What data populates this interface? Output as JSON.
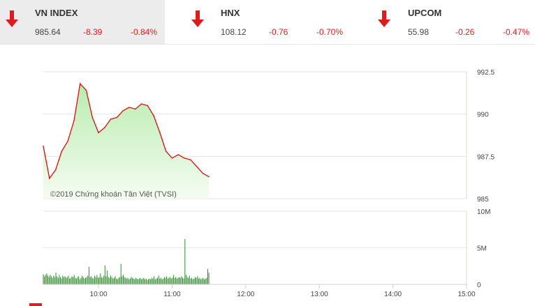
{
  "indices": [
    {
      "name": "VN INDEX",
      "value": "985.64",
      "change": "-8.39",
      "percent": "-0.84%",
      "direction": "down",
      "active": true
    },
    {
      "name": "HNX",
      "value": "108.12",
      "change": "-0.76",
      "percent": "-0.70%",
      "direction": "down",
      "active": false
    },
    {
      "name": "UPCOM",
      "value": "55.98",
      "change": "-0.26",
      "percent": "-0.47%",
      "direction": "down",
      "active": false
    }
  ],
  "colors": {
    "line": "#d41e1e",
    "area_top": "#b9ecae",
    "area_bottom": "#f4fcf2",
    "volume": "#2e8b2e",
    "down": "#e01b1b",
    "grid": "#e3e3e3",
    "axis": "#cfe3cf"
  },
  "chart_data": [
    {
      "type": "area",
      "watermark": "©2019 Chứng khoán Tân Việt (TVSI)",
      "x_label": "time",
      "xlim": [
        "09:15",
        "15:00"
      ],
      "ylim": [
        985,
        992.5
      ],
      "yticks": [
        "992.5",
        "990",
        "987.5",
        "985"
      ],
      "x": [
        "09:15",
        "09:20",
        "09:25",
        "09:30",
        "09:35",
        "09:40",
        "09:45",
        "09:50",
        "09:55",
        "10:00",
        "10:05",
        "10:10",
        "10:15",
        "10:20",
        "10:25",
        "10:30",
        "10:35",
        "10:40",
        "10:45",
        "10:50",
        "10:55",
        "11:00",
        "11:05",
        "11:10",
        "11:15",
        "11:20",
        "11:25",
        "11:30"
      ],
      "values": [
        988.1,
        986.2,
        986.7,
        987.8,
        988.4,
        989.6,
        991.8,
        991.4,
        989.8,
        988.9,
        989.2,
        989.7,
        989.8,
        990.2,
        990.4,
        990.3,
        990.6,
        990.5,
        989.9,
        988.9,
        987.8,
        987.4,
        987.6,
        987.4,
        987.3,
        986.9,
        986.5,
        986.3
      ]
    },
    {
      "type": "bar",
      "ylim": [
        0,
        10
      ],
      "yticks": [
        "10M",
        "5M",
        "0"
      ],
      "xticks": [
        "10:00",
        "11:00",
        "12:00",
        "13:00",
        "14:00",
        "15:00"
      ],
      "volume_unit": "millions",
      "values": [
        1.4,
        1.1,
        1.3,
        1.5,
        1.2,
        1.0,
        1.3,
        1.1,
        0.9,
        1.2,
        1.0,
        1.6,
        1.1,
        0.9,
        1.3,
        1.0,
        0.8,
        1.2,
        1.0,
        1.1,
        0.9,
        1.0,
        1.2,
        0.8,
        0.9,
        1.1,
        1.0,
        1.3,
        0.9,
        0.8,
        1.0,
        1.1,
        0.7,
        0.9,
        1.2,
        1.0,
        0.8,
        0.9,
        1.0,
        1.2,
        2.4,
        1.0,
        1.1,
        0.9,
        0.8,
        1.2,
        1.0,
        1.3,
        0.9,
        1.0,
        1.5,
        1.0,
        0.9,
        1.2,
        2.6,
        1.1,
        1.9,
        1.0,
        0.9,
        1.2,
        1.0,
        0.8,
        0.9,
        1.1,
        0.8,
        0.7,
        0.9,
        1.0,
        2.8,
        1.1,
        1.3,
        1.0,
        0.9,
        0.8,
        0.9,
        0.7,
        0.8,
        1.0,
        0.9,
        0.8,
        0.7,
        0.9,
        0.8,
        0.7,
        0.8,
        0.9,
        0.7,
        0.8,
        0.9,
        0.7,
        0.8,
        0.6,
        0.7,
        0.8,
        0.7,
        0.9,
        0.8,
        1.1,
        0.7,
        0.8,
        0.9,
        1.2,
        0.8,
        0.9,
        0.7,
        0.8,
        1.0,
        0.9,
        1.1,
        0.8,
        0.9,
        1.0,
        0.8,
        0.9,
        1.3,
        0.9,
        1.0,
        0.8,
        0.9,
        1.0,
        0.9,
        1.1,
        0.9,
        0.8,
        6.2,
        1.3,
        1.0,
        0.9,
        1.2,
        0.8,
        0.9,
        0.7,
        0.8,
        1.0,
        0.9,
        1.1,
        0.8,
        0.9,
        0.7,
        0.8,
        0.9,
        0.7,
        0.8,
        0.9,
        2.1,
        1.6
      ]
    }
  ]
}
